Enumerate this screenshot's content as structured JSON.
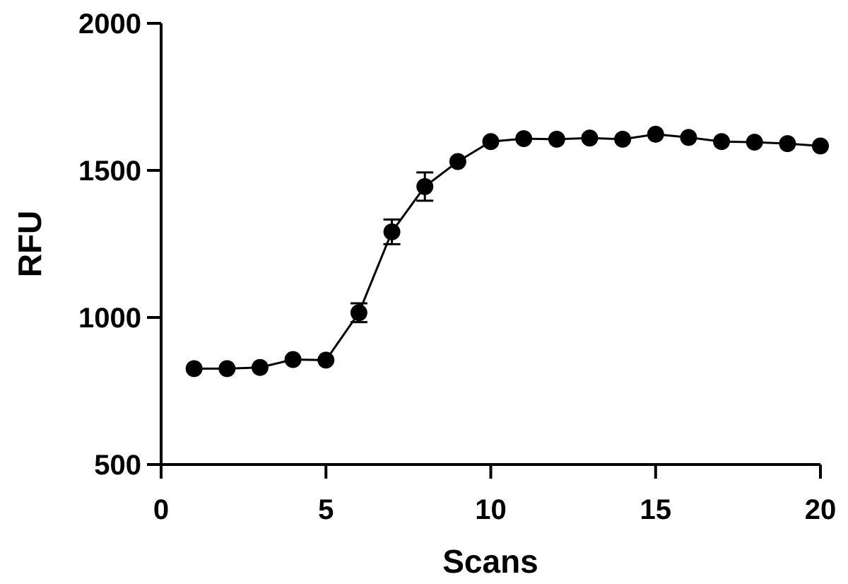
{
  "chart_data": {
    "type": "line",
    "title": "",
    "xlabel": "Scans",
    "ylabel": "RFU",
    "xlim": [
      0,
      20
    ],
    "ylim": [
      500,
      2000
    ],
    "x_ticks": [
      0,
      5,
      10,
      15,
      20
    ],
    "y_ticks": [
      500,
      1000,
      1500,
      2000
    ],
    "grid": false,
    "legend": "none",
    "marker": "filled-circle",
    "error_bars": true,
    "color": "#000000",
    "series": [
      {
        "x": [
          1,
          2,
          3,
          4,
          5,
          6,
          7,
          8,
          9,
          10,
          11,
          12,
          13,
          14,
          15,
          16,
          17,
          18,
          19,
          20
        ],
        "values": [
          826,
          826,
          830,
          857,
          855,
          1016,
          1291,
          1445,
          1530,
          1598,
          1608,
          1606,
          1610,
          1606,
          1623,
          1612,
          1598,
          1596,
          1591,
          1583
        ],
        "error": [
          0,
          0,
          0,
          0,
          0,
          32,
          42,
          48,
          0,
          0,
          0,
          0,
          0,
          0,
          0,
          0,
          0,
          0,
          0,
          0
        ]
      }
    ]
  }
}
